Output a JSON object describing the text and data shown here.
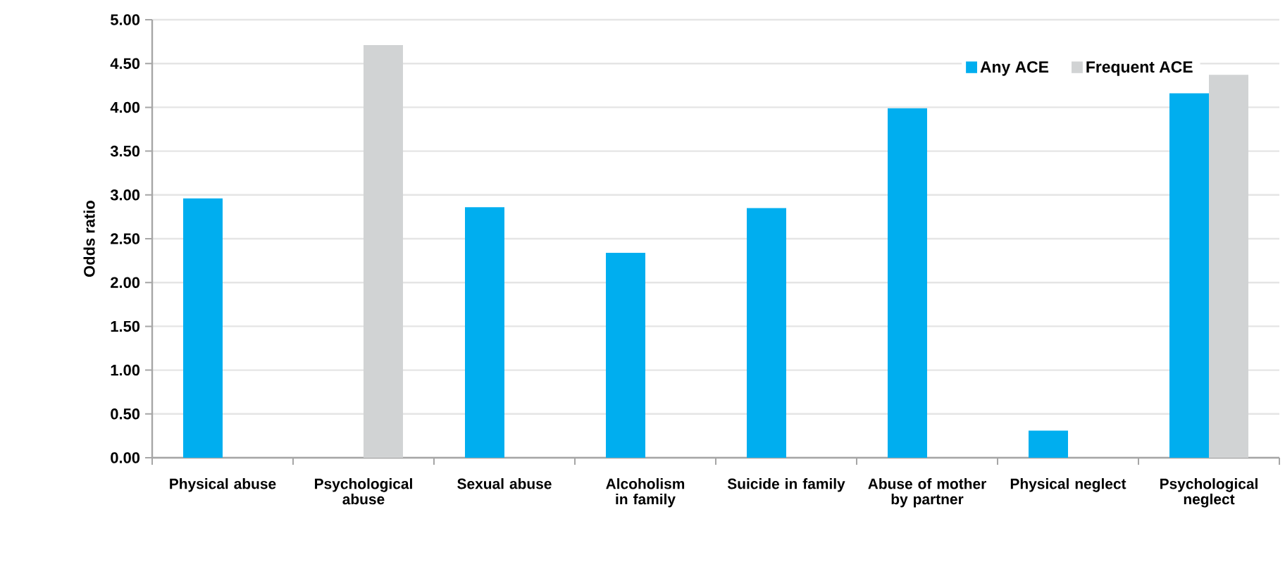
{
  "chart_data": {
    "type": "bar",
    "ylabel": "Odds ratio",
    "categories": [
      "Physical abuse",
      "Psychological abuse",
      "Sexual abuse",
      "Alcoholism in family",
      "Suicide in family",
      "Abuse of mother by partner",
      "Physical neglect",
      "Psychological neglect"
    ],
    "series": [
      {
        "name": "Any ACE",
        "color": "#00aeef",
        "values": [
          2.96,
          null,
          2.86,
          2.34,
          2.85,
          3.99,
          0.31,
          4.16
        ]
      },
      {
        "name": "Frequent ACE",
        "color": "#d1d3d4",
        "values": [
          null,
          4.71,
          null,
          null,
          null,
          null,
          null,
          4.37
        ]
      }
    ],
    "ylim": [
      0,
      5
    ],
    "yticks": [
      {
        "value": 0,
        "label": "0.00"
      },
      {
        "value": 0.5,
        "label": "0.50"
      },
      {
        "value": 1,
        "label": "1.00"
      },
      {
        "value": 1.5,
        "label": "1.50"
      },
      {
        "value": 2,
        "label": "2.00"
      },
      {
        "value": 2.5,
        "label": "2.50"
      },
      {
        "value": 3,
        "label": "3.00"
      },
      {
        "value": 3.5,
        "label": "3.50"
      },
      {
        "value": 4,
        "label": "4.00"
      },
      {
        "value": 4.5,
        "label": "4.50"
      },
      {
        "value": 5,
        "label": "5.00"
      }
    ],
    "grid": "y",
    "legend": "top right"
  }
}
